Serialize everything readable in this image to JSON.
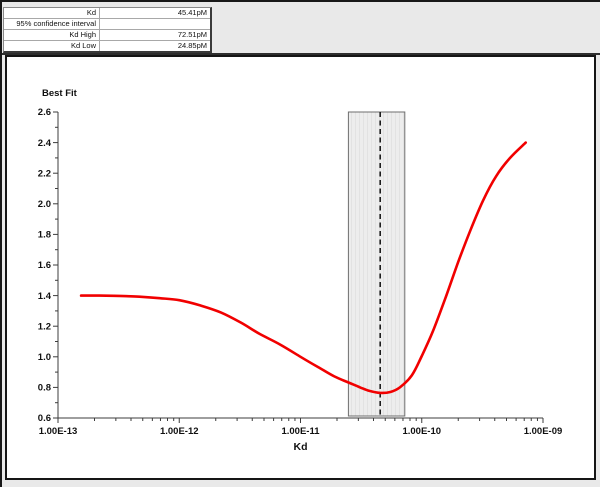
{
  "results_table": {
    "rows": [
      {
        "label": "Kd",
        "value": "45.41pM"
      },
      {
        "label": "95% confidence interval",
        "value": ""
      },
      {
        "label": "Kd High",
        "value": "72.51pM"
      },
      {
        "label": "Kd Low",
        "value": "24.85pM"
      }
    ]
  },
  "chart_data": {
    "type": "line",
    "title": "Best Fit",
    "xlabel": "Kd",
    "ylabel": "",
    "x_scale": "log",
    "xlim": [
      1e-13,
      1e-09
    ],
    "ylim": [
      0.6,
      2.6
    ],
    "y_major_step": 0.2,
    "y_minor_step": 0.1,
    "x_tick_labels": [
      "1.00E-13",
      "1.00E-12",
      "1.00E-11",
      "1.00E-10",
      "1.00E-09"
    ],
    "grid": false,
    "legend": "none",
    "series": [
      {
        "name": "best-fit-error-curve",
        "color": "#f10000",
        "points": [
          [
            1.55e-13,
            1.4
          ],
          [
            2.2e-13,
            1.4
          ],
          [
            3.2e-13,
            1.398
          ],
          [
            4.7e-13,
            1.393
          ],
          [
            6.9e-13,
            1.383
          ],
          [
            1e-12,
            1.37
          ],
          [
            1.5e-12,
            1.335
          ],
          [
            2.2e-12,
            1.29
          ],
          [
            3.2e-12,
            1.225
          ],
          [
            4.6e-12,
            1.15
          ],
          [
            6.8e-12,
            1.08
          ],
          [
            1e-11,
            1.0
          ],
          [
            1.45e-11,
            0.925
          ],
          [
            1.9e-11,
            0.872
          ],
          [
            2.49e-11,
            0.832
          ],
          [
            3.1e-11,
            0.8
          ],
          [
            3.7e-11,
            0.777
          ],
          [
            4.54e-11,
            0.764
          ],
          [
            5.5e-11,
            0.77
          ],
          [
            6.6e-11,
            0.8
          ],
          [
            8.3e-11,
            0.88
          ],
          [
            1e-10,
            1.005
          ],
          [
            1.24e-10,
            1.17
          ],
          [
            1.56e-10,
            1.38
          ],
          [
            2e-10,
            1.62
          ],
          [
            2.5e-10,
            1.82
          ],
          [
            3.2e-10,
            2.02
          ],
          [
            4.1e-10,
            2.18
          ],
          [
            5.35e-10,
            2.3
          ],
          [
            7.2e-10,
            2.4
          ]
        ]
      }
    ],
    "annotations": {
      "kd_line": {
        "x": 4.541e-11,
        "style": "dashed"
      },
      "confidence_band": {
        "x_min": 2.485e-11,
        "x_max": 7.251e-11
      }
    }
  },
  "colors": {
    "window_bg": "#e9e9e9",
    "panel_bg": "#ffffff",
    "border": "#161616",
    "curve": "#f10000",
    "band_fill": "#ededed",
    "band_edge": "#6e6e6e",
    "axis": "#3c3c3c"
  }
}
